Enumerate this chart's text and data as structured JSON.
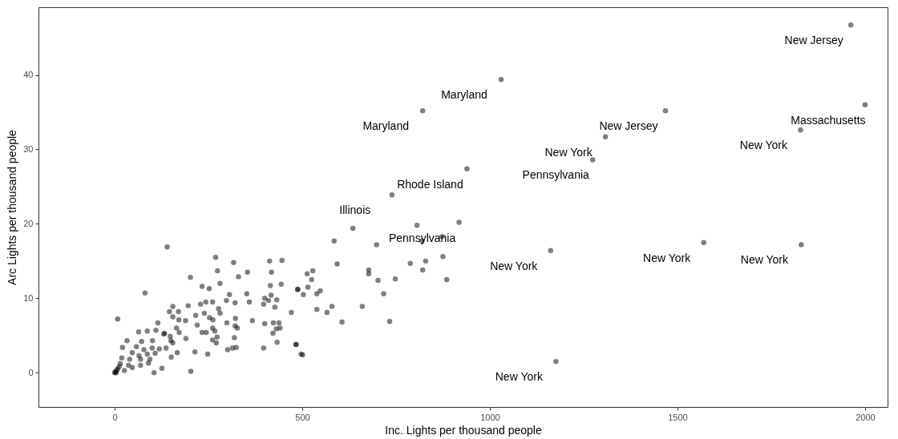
{
  "chart_data": {
    "type": "scatter",
    "xlabel": "Inc. Lights per thousand people",
    "ylabel": "Arc Lights per thousand people",
    "xlim": [
      -203,
      2060
    ],
    "ylim": [
      -4.6,
      49.1
    ],
    "xticks": [
      0,
      500,
      1000,
      1500,
      2000
    ],
    "yticks": [
      0,
      10,
      20,
      30,
      40
    ],
    "grid": false,
    "marker": "circle",
    "series": [
      {
        "color": "#000000",
        "x": [
          1962,
          2000,
          1828,
          1030,
          821,
          1468,
          1308,
          1274,
          939,
          739,
          918,
          1162,
          1570,
          1830,
          1176,
          140,
          269,
          317,
          413,
          446,
          274,
          354,
          418,
          202,
          330,
          233,
          252,
          281,
          415,
          444,
          488,
          81,
          306,
          352,
          417,
          155,
          196,
          229,
          243,
          261,
          298,
          321,
          359,
          400,
          410,
          432,
          397,
          427,
          146,
          170,
          155,
          171,
          189,
          216,
          239,
          253,
          262,
          281,
          277,
          322,
          299,
          367,
          400,
          423,
          438,
          431,
          441,
          471,
          115,
          64,
          87,
          110,
          133,
          165,
          148,
          172,
          220,
          233,
          244,
          261,
          267,
          273,
          321,
          327,
          319,
          422,
          8,
          33,
          72,
          101,
          131,
          150,
          155,
          190,
          261,
          271,
          301,
          314,
          324,
          397,
          433,
          484,
          21,
          58,
          78,
          100,
          119,
          137,
          167,
          214,
          248,
          47,
          65,
          87,
          108,
          19,
          40,
          69,
          94,
          151,
          15,
          37,
          69,
          90,
          26,
          47,
          4,
          0,
          105,
          126,
          203,
          497,
          2,
          5,
          8,
          12,
          635,
          585,
          698,
          806,
          873,
          819,
          593,
          788,
          829,
          875,
          821,
          677,
          677,
          702,
          748,
          885,
          513,
          528,
          525,
          488,
          515,
          503,
          539,
          548,
          717,
          539,
          566,
          579,
          660,
          606,
          733,
          483,
          501
        ],
        "values": [
          46.7,
          36.0,
          32.6,
          39.4,
          35.2,
          35.2,
          31.7,
          28.6,
          27.4,
          23.9,
          20.2,
          16.4,
          17.5,
          17.2,
          1.5,
          16.9,
          15.5,
          14.8,
          15.0,
          15.1,
          13.7,
          13.5,
          13.5,
          12.8,
          12.9,
          11.6,
          11.3,
          12.0,
          11.7,
          11.9,
          11.2,
          10.7,
          10.5,
          10.6,
          10.4,
          8.9,
          9.0,
          9.2,
          9.5,
          9.5,
          9.7,
          9.4,
          9.5,
          10.0,
          9.7,
          9.8,
          9.2,
          8.8,
          8.2,
          8.2,
          7.5,
          7.1,
          7.0,
          7.7,
          8.0,
          7.4,
          7.1,
          8.0,
          8.6,
          7.3,
          6.7,
          7.0,
          6.6,
          6.7,
          6.7,
          5.9,
          6.0,
          8.1,
          6.7,
          5.5,
          5.6,
          5.7,
          5.3,
          6.0,
          4.9,
          5.4,
          6.4,
          5.4,
          5.4,
          6.0,
          5.6,
          4.8,
          6.3,
          6.0,
          4.7,
          5.3,
          7.2,
          4.3,
          4.2,
          4.3,
          5.2,
          4.3,
          4.0,
          4.6,
          4.4,
          4.0,
          3.1,
          3.3,
          3.4,
          3.3,
          4.1,
          3.8,
          3.4,
          3.5,
          3.1,
          3.3,
          3.2,
          3.3,
          2.7,
          2.8,
          2.5,
          2.7,
          2.3,
          2.5,
          2.6,
          2.0,
          1.8,
          1.8,
          1.8,
          2.1,
          1.2,
          1.0,
          1.0,
          1.3,
          0.3,
          0.7,
          0.0,
          0.0,
          0.0,
          0.6,
          0.2,
          2.5,
          0.1,
          0.3,
          0.5,
          0.8,
          19.4,
          17.7,
          17.2,
          19.8,
          18.3,
          17.7,
          14.6,
          14.7,
          15.0,
          15.6,
          13.8,
          13.8,
          13.3,
          12.4,
          12.6,
          12.5,
          13.3,
          13.7,
          12.5,
          11.2,
          11.5,
          10.5,
          10.6,
          11.0,
          10.6,
          8.5,
          8.1,
          8.9,
          8.9,
          6.8,
          6.9,
          3.8,
          2.4
        ]
      }
    ],
    "annotations": [
      {
        "text": "New Jersey",
        "x": 1962,
        "y": 46.7
      },
      {
        "text": "Massachusetts",
        "x": 2000,
        "y": 36.0
      },
      {
        "text": "New York",
        "x": 1828,
        "y": 32.6
      },
      {
        "text": "Maryland",
        "x": 1030,
        "y": 39.4
      },
      {
        "text": "Maryland",
        "x": 821,
        "y": 35.2
      },
      {
        "text": "New Jersey",
        "x": 1468,
        "y": 35.2
      },
      {
        "text": "New York",
        "x": 1308,
        "y": 31.7
      },
      {
        "text": "Pennsylvania",
        "x": 1274,
        "y": 28.6
      },
      {
        "text": "Rhode Island",
        "x": 939,
        "y": 27.4
      },
      {
        "text": "Illinois",
        "x": 739,
        "y": 23.9
      },
      {
        "text": "Pennsylvania",
        "x": 918,
        "y": 20.2
      },
      {
        "text": "New York",
        "x": 1162,
        "y": 16.4
      },
      {
        "text": "New York",
        "x": 1570,
        "y": 17.5
      },
      {
        "text": "New York",
        "x": 1830,
        "y": 17.2
      },
      {
        "text": "New York",
        "x": 1176,
        "y": 1.5
      }
    ]
  }
}
